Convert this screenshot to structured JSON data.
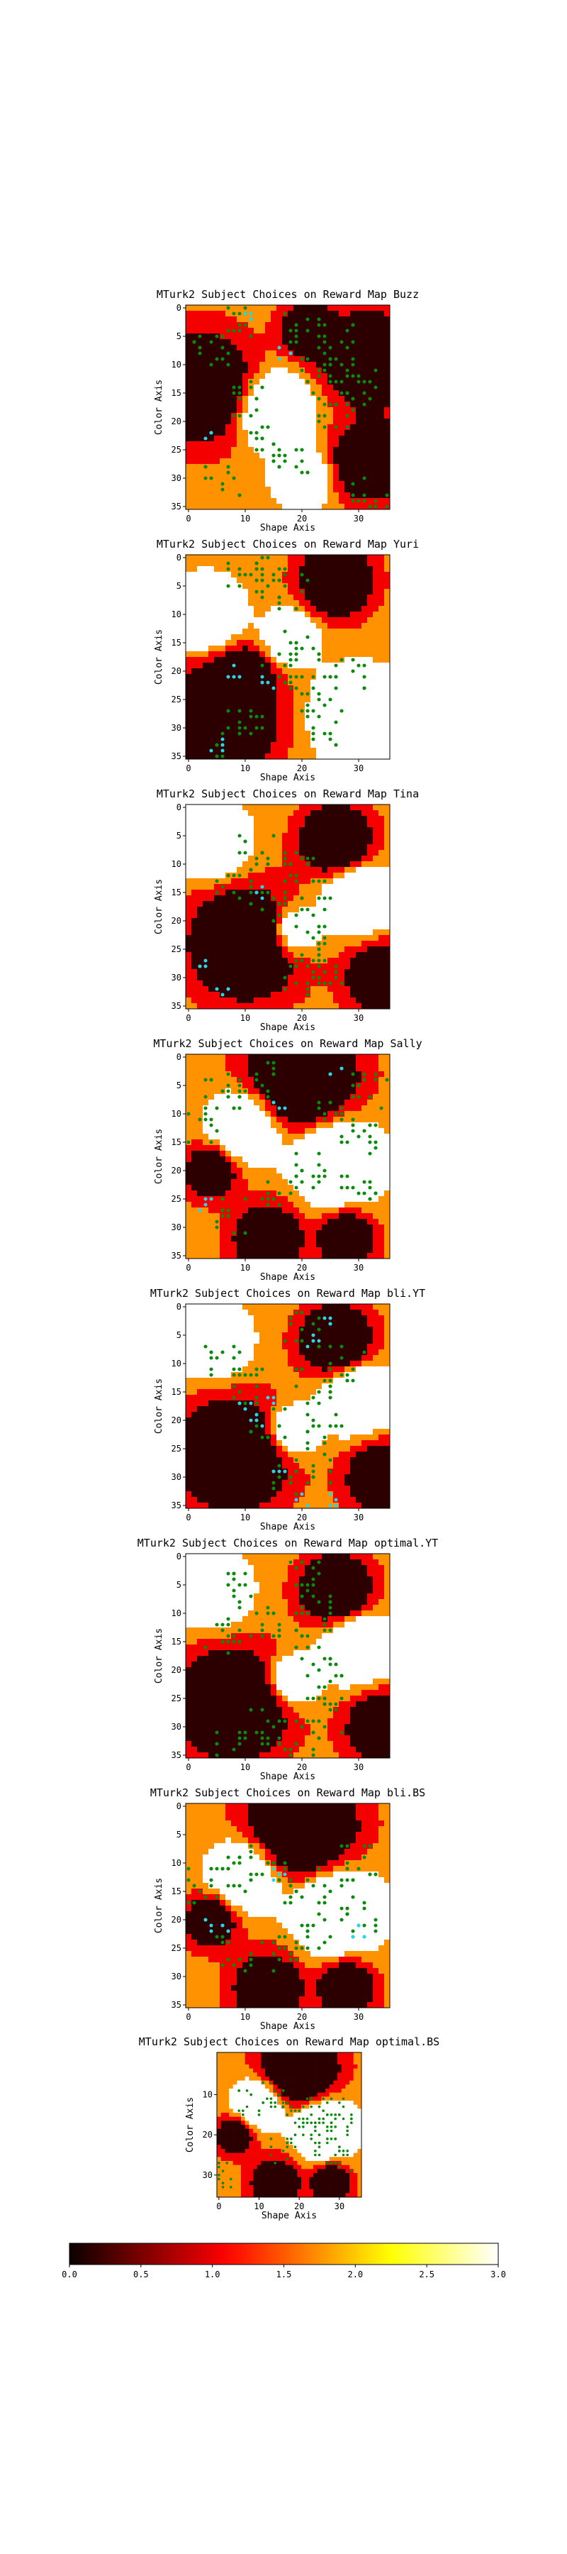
{
  "chart_data": [
    {
      "type": "heatmap",
      "map": "Buzz",
      "title": "MTurk2 Subject Choices on Reward Map Buzz",
      "xlabel": "Shape Axis",
      "ylabel": "Color Axis",
      "grid_size": 36,
      "xticks": [
        0,
        10,
        20,
        30
      ],
      "yticks": [
        0,
        5,
        10,
        15,
        20,
        25,
        30,
        35
      ],
      "reward_peaks": [
        [
          2,
          14,
          -3.5,
          6
        ],
        [
          21,
          4,
          -3,
          3
        ],
        [
          32,
          9,
          -4,
          5
        ],
        [
          32,
          27,
          -4,
          4
        ],
        [
          15,
          18,
          3.2,
          4
        ],
        [
          20,
          30,
          3,
          3
        ]
      ],
      "choices": {
        "green": [
          [
            8,
            3
          ],
          [
            20,
            4
          ],
          [
            26,
            6
          ],
          [
            28,
            12
          ],
          [
            22,
            12
          ],
          [
            26,
            18
          ],
          [
            30,
            14
          ],
          [
            14,
            24
          ],
          [
            18,
            26
          ],
          [
            6,
            30
          ],
          [
            32,
            32
          ],
          [
            4,
            8
          ],
          [
            10,
            16
          ]
        ],
        "cyan": [
          [
            11,
            2
          ],
          [
            3,
            22
          ],
          [
            17,
            8
          ]
        ]
      }
    },
    {
      "type": "heatmap",
      "map": "Yuri",
      "title": "MTurk2 Subject Choices on Reward Map Yuri",
      "xlabel": "Shape Axis",
      "ylabel": "Color Axis",
      "grid_size": 36,
      "xticks": [
        0,
        10,
        20,
        30
      ],
      "yticks": [
        0,
        5,
        10,
        15,
        20,
        25,
        30,
        35
      ],
      "reward_peaks": [
        [
          6,
          28,
          -4,
          6
        ],
        [
          26,
          4,
          -3.5,
          4
        ],
        [
          10,
          20,
          -2,
          3
        ],
        [
          3,
          10,
          2.8,
          4
        ],
        [
          30,
          28,
          3,
          5
        ],
        [
          18,
          14,
          2.5,
          3
        ]
      ],
      "choices": {
        "green": [
          [
            10,
            4
          ],
          [
            14,
            2
          ],
          [
            18,
            6
          ],
          [
            20,
            16
          ],
          [
            22,
            24
          ],
          [
            24,
            30
          ],
          [
            10,
            30
          ],
          [
            6,
            34
          ],
          [
            28,
            20
          ],
          [
            16,
            20
          ]
        ],
        "cyan": [
          [
            8,
            20
          ],
          [
            5,
            33
          ],
          [
            14,
            22
          ]
        ]
      }
    },
    {
      "type": "heatmap",
      "map": "Tina",
      "title": "MTurk2 Subject Choices on Reward Map Tina",
      "xlabel": "Shape Axis",
      "ylabel": "Color Axis",
      "grid_size": 36,
      "xticks": [
        0,
        10,
        20,
        30
      ],
      "yticks": [
        0,
        5,
        10,
        15,
        20,
        25,
        30,
        35
      ],
      "reward_peaks": [
        [
          10,
          24,
          -4,
          6
        ],
        [
          26,
          6,
          -3.5,
          4
        ],
        [
          34,
          30,
          -3,
          4
        ],
        [
          4,
          6,
          2.8,
          4
        ],
        [
          30,
          16,
          3,
          4
        ],
        [
          18,
          22,
          2.6,
          3
        ]
      ],
      "choices": {
        "green": [
          [
            20,
            10
          ],
          [
            22,
            16
          ],
          [
            22,
            24
          ],
          [
            20,
            30
          ],
          [
            26,
            28
          ],
          [
            12,
            8
          ],
          [
            8,
            14
          ],
          [
            14,
            18
          ]
        ],
        "cyan": [
          [
            2,
            27
          ],
          [
            6,
            32
          ],
          [
            13,
            15
          ]
        ]
      }
    },
    {
      "type": "heatmap",
      "map": "Sally",
      "title": "MTurk2 Subject Choices on Reward Map Sally",
      "xlabel": "Shape Axis",
      "ylabel": "Color Axis",
      "grid_size": 36,
      "xticks": [
        0,
        10,
        20,
        30
      ],
      "yticks": [
        0,
        5,
        10,
        15,
        20,
        25,
        30,
        35
      ],
      "reward_peaks": [
        [
          20,
          4,
          -4,
          6
        ],
        [
          4,
          20,
          -3,
          3
        ],
        [
          14,
          32,
          -3,
          4
        ],
        [
          28,
          32,
          -3.5,
          3
        ],
        [
          10,
          12,
          3,
          4
        ],
        [
          26,
          18,
          3,
          5
        ]
      ],
      "choices": {
        "green": [
          [
            6,
            6
          ],
          [
            12,
            4
          ],
          [
            26,
            10
          ],
          [
            30,
            14
          ],
          [
            22,
            20
          ],
          [
            30,
            24
          ],
          [
            8,
            28
          ],
          [
            16,
            24
          ],
          [
            32,
            6
          ],
          [
            2,
            12
          ]
        ],
        "cyan": [
          [
            16,
            9
          ],
          [
            26,
            3
          ],
          [
            3,
            26
          ]
        ]
      }
    },
    {
      "type": "heatmap",
      "map": "bli.YT",
      "title": "MTurk2 Subject Choices on Reward Map bli.YT",
      "xlabel": "Shape Axis",
      "ylabel": "Color Axis",
      "grid_size": 36,
      "xticks": [
        0,
        10,
        20,
        30
      ],
      "yticks": [
        0,
        5,
        10,
        15,
        20,
        25,
        30,
        35
      ],
      "reward_peaks": [
        [
          8,
          26,
          -4,
          6
        ],
        [
          26,
          6,
          -3.5,
          4
        ],
        [
          34,
          30,
          -3,
          4
        ],
        [
          4,
          6,
          2.8,
          4
        ],
        [
          30,
          16,
          3,
          4
        ],
        [
          18,
          22,
          2.6,
          3
        ]
      ],
      "choices": {
        "green": [
          [
            20,
            4
          ],
          [
            22,
            14
          ],
          [
            24,
            22
          ],
          [
            22,
            28
          ],
          [
            14,
            20
          ],
          [
            10,
            14
          ],
          [
            18,
            30
          ],
          [
            28,
            10
          ],
          [
            6,
            10
          ]
        ],
        "cyan": [
          [
            24,
            2
          ],
          [
            14,
            16
          ],
          [
            12,
            20
          ],
          [
            20,
            34
          ],
          [
            26,
            34
          ],
          [
            16,
            30
          ],
          [
            10,
            18
          ],
          [
            22,
            6
          ]
        ]
      }
    },
    {
      "type": "heatmap",
      "map": "optimal.YT",
      "title": "MTurk2 Subject Choices on Reward Map optimal.YT",
      "xlabel": "Shape Axis",
      "ylabel": "Color Axis",
      "grid_size": 36,
      "xticks": [
        0,
        10,
        20,
        30
      ],
      "yticks": [
        0,
        5,
        10,
        15,
        20,
        25,
        30,
        35
      ],
      "reward_peaks": [
        [
          8,
          26,
          -4,
          6
        ],
        [
          26,
          6,
          -3.5,
          4
        ],
        [
          34,
          30,
          -3,
          4
        ],
        [
          4,
          6,
          2.8,
          4
        ],
        [
          30,
          16,
          3,
          4
        ],
        [
          18,
          22,
          2.6,
          3
        ]
      ],
      "choices": {
        "green": [
          [
            20,
            4
          ],
          [
            22,
            10
          ],
          [
            22,
            16
          ],
          [
            24,
            22
          ],
          [
            24,
            28
          ],
          [
            20,
            32
          ],
          [
            14,
            30
          ],
          [
            8,
            34
          ],
          [
            10,
            6
          ],
          [
            14,
            12
          ],
          [
            6,
            14
          ]
        ],
        "cyan": []
      }
    },
    {
      "type": "heatmap",
      "map": "bli.BS",
      "title": "MTurk2 Subject Choices on Reward Map bli.BS",
      "xlabel": "Shape Axis",
      "ylabel": "Color Axis",
      "grid_size": 36,
      "xticks": [
        0,
        10,
        20,
        30
      ],
      "yticks": [
        0,
        5,
        10,
        15,
        20,
        25,
        30,
        35
      ],
      "reward_peaks": [
        [
          20,
          4,
          -4,
          6
        ],
        [
          4,
          20,
          -3,
          3
        ],
        [
          14,
          32,
          -3,
          4
        ],
        [
          28,
          32,
          -3.5,
          3
        ],
        [
          10,
          12,
          3,
          4
        ],
        [
          26,
          18,
          3,
          5
        ]
      ],
      "choices": {
        "green": [
          [
            8,
            12
          ],
          [
            14,
            10
          ],
          [
            20,
            14
          ],
          [
            26,
            16
          ],
          [
            30,
            20
          ],
          [
            22,
            22
          ],
          [
            16,
            26
          ],
          [
            8,
            26
          ],
          [
            30,
            10
          ],
          [
            2,
            14
          ]
        ],
        "cyan": [
          [
            4,
            21
          ],
          [
            6,
            22
          ],
          [
            16,
            12
          ],
          [
            30,
            22
          ]
        ]
      }
    },
    {
      "type": "heatmap",
      "map": "optimal.BS",
      "title": "MTurk2 Subject Choices on Reward Map optimal.BS",
      "xlabel": "Shape Axis",
      "ylabel": "Color Axis",
      "grid_size": 36,
      "xticks": [
        0,
        10,
        20,
        30
      ],
      "yticks": [
        10,
        20,
        30
      ],
      "reward_peaks": [
        [
          20,
          4,
          -4,
          6
        ],
        [
          4,
          20,
          -3,
          3
        ],
        [
          14,
          32,
          -3,
          4
        ],
        [
          28,
          32,
          -3.5,
          3
        ],
        [
          10,
          12,
          3,
          4
        ],
        [
          26,
          18,
          3,
          5
        ]
      ],
      "choices": {
        "green": [
          [
            20,
            14
          ],
          [
            24,
            16
          ],
          [
            28,
            14
          ],
          [
            30,
            18
          ],
          [
            22,
            20
          ],
          [
            26,
            22
          ],
          [
            30,
            26
          ],
          [
            8,
            12
          ],
          [
            14,
            10
          ],
          [
            16,
            24
          ],
          [
            2,
            30
          ]
        ],
        "cyan": []
      }
    }
  ],
  "colorbar": {
    "min": 0.0,
    "max": 3.0,
    "ticks": [
      "0.0",
      "0.5",
      "1.0",
      "1.5",
      "2.0",
      "2.5",
      "3.0"
    ],
    "colormap": "hot",
    "stops": [
      "#0b0000",
      "#e50000",
      "#ffb000",
      "#ffffff"
    ]
  },
  "colors": {
    "choice_green": "#0a8a0a",
    "choice_cyan": "#29d6e8"
  }
}
